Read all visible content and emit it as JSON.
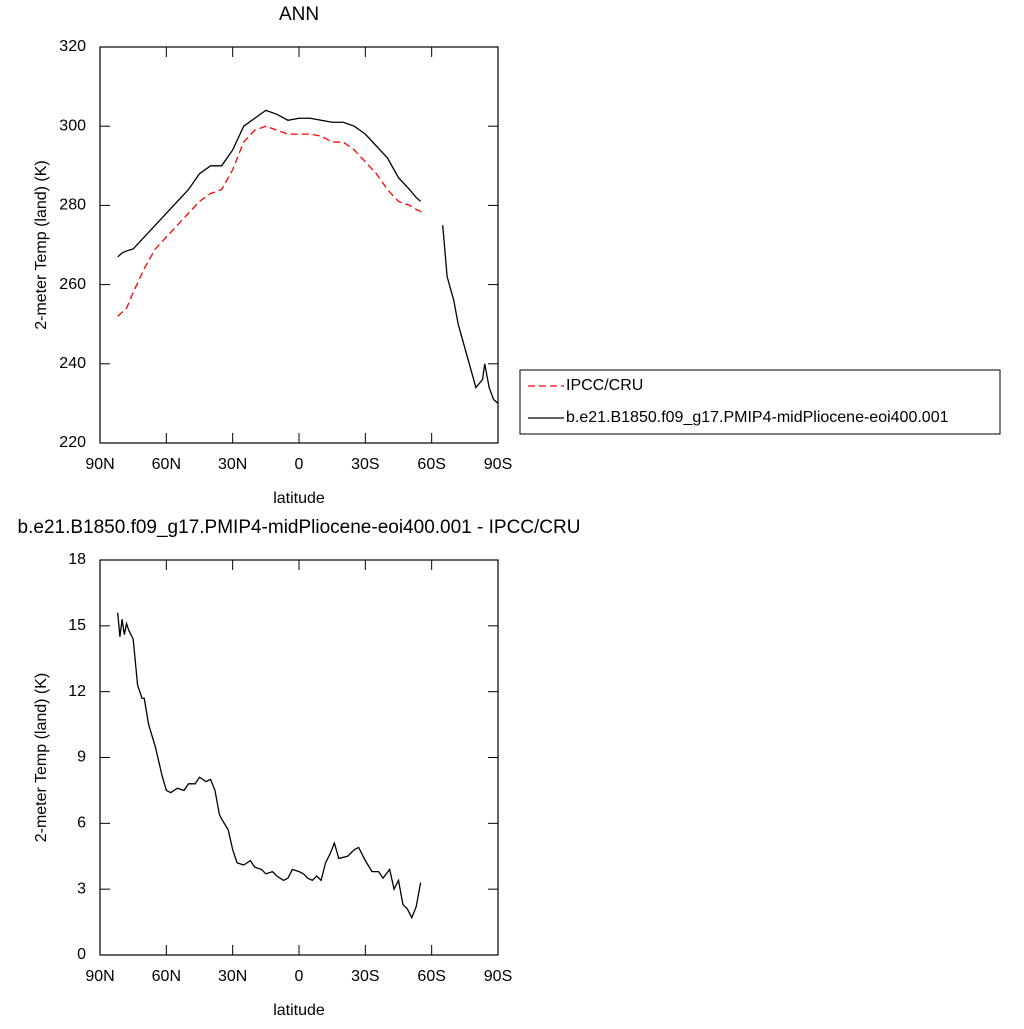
{
  "chart_data": [
    {
      "type": "line",
      "title": "ANN",
      "ylabel": "2-meter Temp (land) (K)",
      "xlabel": "latitude",
      "xlim": [
        90,
        -90
      ],
      "xticks": [
        {
          "value": 90,
          "label": "90N"
        },
        {
          "value": 60,
          "label": "60N"
        },
        {
          "value": 30,
          "label": "30N"
        },
        0,
        {
          "value": -30,
          "label": "30S"
        },
        {
          "value": -60,
          "label": "60S"
        },
        {
          "value": -90,
          "label": "90S"
        }
      ],
      "ylim": [
        220,
        320
      ],
      "yticks": [
        220,
        240,
        260,
        280,
        300,
        320
      ],
      "legend": "right",
      "x": [
        82,
        80,
        78,
        75,
        70,
        65,
        60,
        55,
        50,
        45,
        40,
        35,
        30,
        25,
        20,
        15,
        10,
        5,
        0,
        -5,
        -10,
        -15,
        -20,
        -25,
        -30,
        -35,
        -40,
        -45,
        -50,
        -53,
        -55,
        -56,
        -60,
        -65,
        -67,
        -70,
        -72,
        -75,
        -78,
        -80,
        -83,
        -84,
        -86,
        -88,
        -90
      ],
      "series": [
        {
          "name": "IPCC/CRU",
          "color": "#ff0000",
          "style": "dashed",
          "values": [
            252,
            253,
            254,
            258,
            264,
            269,
            272,
            275,
            278,
            281,
            283,
            284,
            289,
            296,
            299,
            300,
            299,
            298,
            298,
            298,
            297.5,
            296,
            296,
            294,
            291,
            288,
            284,
            281,
            280,
            279,
            278.5,
            277.5,
            null,
            null,
            null,
            null,
            null,
            null,
            null,
            null,
            null,
            null,
            null,
            null,
            null
          ]
        },
        {
          "name": "b.e21.B1850.f09_g17.PMIP4-midPliocene-eoi400.001",
          "color": "#000000",
          "style": "solid",
          "values": [
            267,
            268,
            268.5,
            269,
            272,
            275,
            278,
            281,
            284,
            288,
            290,
            290,
            294,
            300,
            302,
            304,
            303,
            301.5,
            302,
            302,
            301.5,
            301,
            301,
            300,
            298,
            295,
            292,
            287,
            284,
            282,
            281,
            null,
            null,
            275,
            262,
            256,
            250,
            244,
            238,
            234,
            236,
            240,
            234,
            231,
            230
          ]
        }
      ]
    },
    {
      "type": "line",
      "title": "b.e21.B1850.f09_g17.PMIP4-midPliocene-eoi400.001 - IPCC/CRU",
      "ylabel": "2-meter Temp (land) (K)",
      "xlabel": "latitude",
      "xlim": [
        90,
        -90
      ],
      "xticks": [
        {
          "value": 90,
          "label": "90N"
        },
        {
          "value": 60,
          "label": "60N"
        },
        {
          "value": 30,
          "label": "30N"
        },
        0,
        {
          "value": -30,
          "label": "30S"
        },
        {
          "value": -60,
          "label": "60S"
        },
        {
          "value": -90,
          "label": "90S"
        }
      ],
      "ylim": [
        0,
        18
      ],
      "yticks": [
        0,
        3,
        6,
        9,
        12,
        15,
        18
      ],
      "x": [
        82,
        81,
        80,
        79,
        78,
        77,
        75,
        73,
        71,
        70,
        68,
        65,
        62,
        60,
        58,
        55,
        52,
        50,
        47,
        45,
        42,
        40,
        38,
        36,
        35,
        32,
        30,
        28,
        25,
        22,
        20,
        17,
        15,
        12,
        10,
        7,
        5,
        3,
        0,
        -2,
        -4,
        -6,
        -8,
        -10,
        -12,
        -14,
        -16,
        -18,
        -22,
        -25,
        -27,
        -30,
        -33,
        -36,
        -38,
        -41,
        -43,
        -45,
        -47,
        -49,
        -51,
        -53,
        -55
      ],
      "series": [
        {
          "color": "#000000",
          "style": "solid",
          "values": [
            15.6,
            14.5,
            15.3,
            14.6,
            15.1,
            14.8,
            14.4,
            12.3,
            11.7,
            11.7,
            10.5,
            9.5,
            8.2,
            7.5,
            7.4,
            7.6,
            7.5,
            7.8,
            7.8,
            8.1,
            7.9,
            8.0,
            7.5,
            6.4,
            6.2,
            5.7,
            4.8,
            4.2,
            4.1,
            4.3,
            4.0,
            3.9,
            3.7,
            3.8,
            3.6,
            3.4,
            3.5,
            3.9,
            3.8,
            3.7,
            3.5,
            3.4,
            3.6,
            3.4,
            4.2,
            4.6,
            5.1,
            4.4,
            4.5,
            4.8,
            4.9,
            4.3,
            3.8,
            3.8,
            3.5,
            3.9,
            3.0,
            3.4,
            2.3,
            2.1,
            1.7,
            2.2,
            3.3
          ]
        }
      ]
    }
  ]
}
